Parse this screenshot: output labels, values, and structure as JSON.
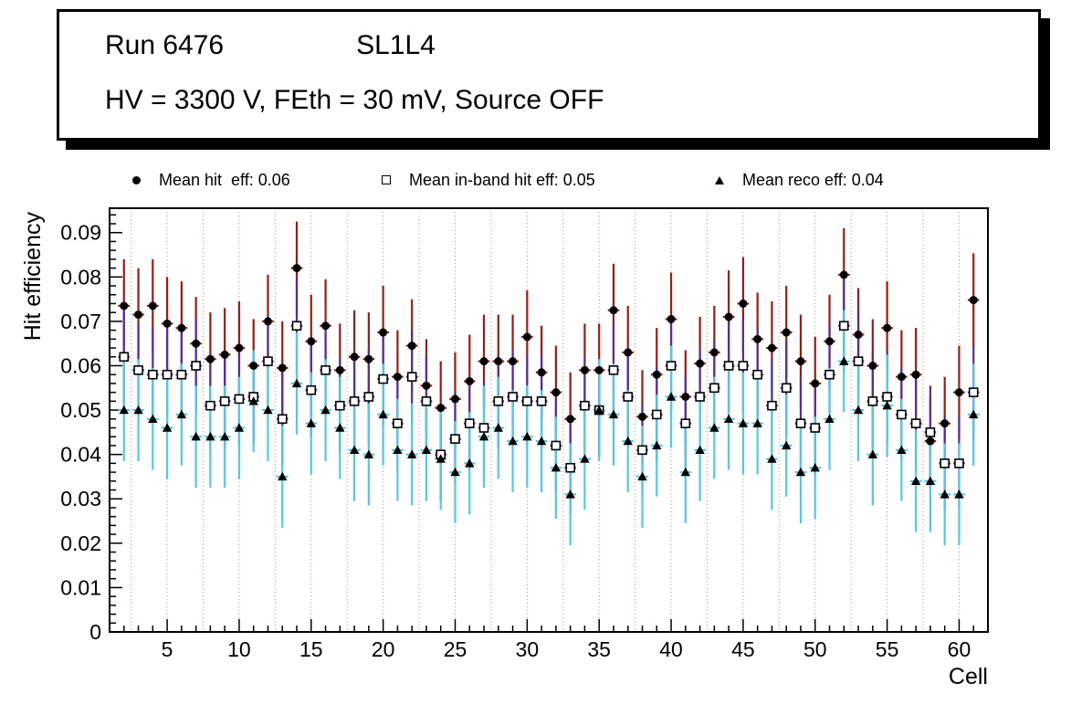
{
  "title": {
    "run": "Run 6476",
    "layer": "SL1L4",
    "conditions": "HV = 3300 V, FEth = 30 mV, Source OFF"
  },
  "legend": {
    "items": [
      {
        "marker": "filled-circle",
        "label": "Mean hit  eff: 0.06"
      },
      {
        "marker": "open-square",
        "label": "Mean in-band hit eff: 0.05"
      },
      {
        "marker": "filled-triangle",
        "label": "Mean reco eff: 0.04"
      }
    ]
  },
  "axes": {
    "xlabel": "Cell",
    "ylabel": "Hit efficiency",
    "xlim": [
      1,
      62
    ],
    "ylim": [
      0,
      0.0955
    ],
    "grid_step": 2.5,
    "x_minor": 1,
    "y_minor": 0.002,
    "x_ticks": [
      5,
      10,
      15,
      20,
      25,
      30,
      35,
      40,
      45,
      50,
      55,
      60
    ],
    "x_tick_labels": [
      "5",
      "10",
      "15",
      "20",
      "25",
      "30",
      "35",
      "40",
      "45",
      "50",
      "55",
      "60"
    ],
    "y_ticks": [
      0,
      0.01,
      0.02,
      0.03,
      0.04,
      0.05,
      0.06,
      0.07,
      0.08,
      0.09
    ],
    "y_tick_labels": [
      "0",
      "0.01",
      "0.02",
      "0.03",
      "0.04",
      "0.05",
      "0.06",
      "0.07",
      "0.08",
      "0.09"
    ]
  },
  "colors": {
    "hit_err": "#9e1b14",
    "inband_err": "#5a2ba0",
    "reco_err": "#4ecbe8",
    "marker": "#000000",
    "square_fill": "#ffffff",
    "grid": "#999999"
  },
  "chart_data": {
    "type": "scatter",
    "title": "Run 6476 SL1L4, HV = 3300 V, FEth = 30 mV, Source OFF",
    "xlabel": "Cell",
    "ylabel": "Hit efficiency",
    "x": [
      2,
      3,
      4,
      5,
      6,
      7,
      8,
      9,
      10,
      11,
      12,
      13,
      14,
      15,
      16,
      17,
      18,
      19,
      20,
      21,
      22,
      23,
      24,
      25,
      26,
      27,
      28,
      29,
      30,
      31,
      32,
      33,
      34,
      35,
      36,
      37,
      38,
      39,
      40,
      41,
      42,
      43,
      44,
      45,
      46,
      47,
      48,
      49,
      50,
      51,
      52,
      53,
      54,
      55,
      56,
      57,
      58,
      59,
      60,
      61
    ],
    "xerr": 0.4,
    "series": [
      {
        "name": "Mean hit eff",
        "mean": 0.06,
        "marker": "filled-circle",
        "color": "#9e1b14",
        "yerr": 0.0105,
        "values": [
          0.0735,
          0.0715,
          0.0735,
          0.0695,
          0.0685,
          0.065,
          0.0615,
          0.0625,
          0.064,
          0.06,
          0.07,
          0.0595,
          0.082,
          0.0655,
          0.069,
          0.059,
          0.062,
          0.0615,
          0.0675,
          0.0575,
          0.0645,
          0.0555,
          0.0505,
          0.0525,
          0.0565,
          0.061,
          0.061,
          0.061,
          0.0665,
          0.0585,
          0.054,
          0.048,
          0.059,
          0.059,
          0.0725,
          0.063,
          0.0485,
          0.058,
          0.0705,
          0.053,
          0.0605,
          0.063,
          0.071,
          0.074,
          0.066,
          0.064,
          0.0675,
          0.061,
          0.056,
          0.0655,
          0.0805,
          0.067,
          0.06,
          0.0685,
          0.0575,
          0.058,
          0.043,
          0.047,
          0.054,
          0.0748
        ]
      },
      {
        "name": "Mean in-band hit eff",
        "mean": 0.05,
        "marker": "open-square",
        "color": "#5a2ba0",
        "yerr": 0.0105,
        "values": [
          0.062,
          0.059,
          0.058,
          0.058,
          0.058,
          0.06,
          0.051,
          0.052,
          0.0525,
          0.053,
          0.061,
          0.048,
          0.069,
          0.0545,
          0.059,
          0.051,
          0.052,
          0.053,
          0.057,
          0.047,
          0.0575,
          0.052,
          0.04,
          0.0435,
          0.047,
          0.046,
          0.052,
          0.053,
          0.052,
          0.052,
          0.042,
          0.037,
          0.051,
          0.05,
          0.059,
          0.053,
          0.041,
          0.049,
          0.06,
          0.047,
          0.053,
          0.055,
          0.06,
          0.06,
          0.058,
          0.051,
          0.055,
          0.047,
          0.046,
          0.058,
          0.069,
          0.061,
          0.052,
          0.053,
          0.049,
          0.047,
          0.045,
          0.038,
          0.038,
          0.054
        ]
      },
      {
        "name": "Mean reco eff",
        "mean": 0.04,
        "marker": "filled-triangle",
        "color": "#4ecbe8",
        "yerr": 0.0115,
        "values": [
          0.05,
          0.05,
          0.048,
          0.046,
          0.049,
          0.044,
          0.044,
          0.044,
          0.046,
          0.052,
          0.05,
          0.035,
          0.056,
          0.047,
          0.05,
          0.046,
          0.041,
          0.04,
          0.049,
          0.041,
          0.04,
          0.041,
          0.039,
          0.036,
          0.038,
          0.044,
          0.046,
          0.043,
          0.044,
          0.043,
          0.037,
          0.031,
          0.039,
          0.05,
          0.049,
          0.043,
          0.035,
          0.042,
          0.053,
          0.036,
          0.041,
          0.046,
          0.048,
          0.047,
          0.047,
          0.039,
          0.042,
          0.036,
          0.037,
          0.048,
          0.061,
          0.05,
          0.04,
          0.051,
          0.041,
          0.034,
          0.034,
          0.031,
          0.031,
          0.049
        ]
      }
    ]
  }
}
